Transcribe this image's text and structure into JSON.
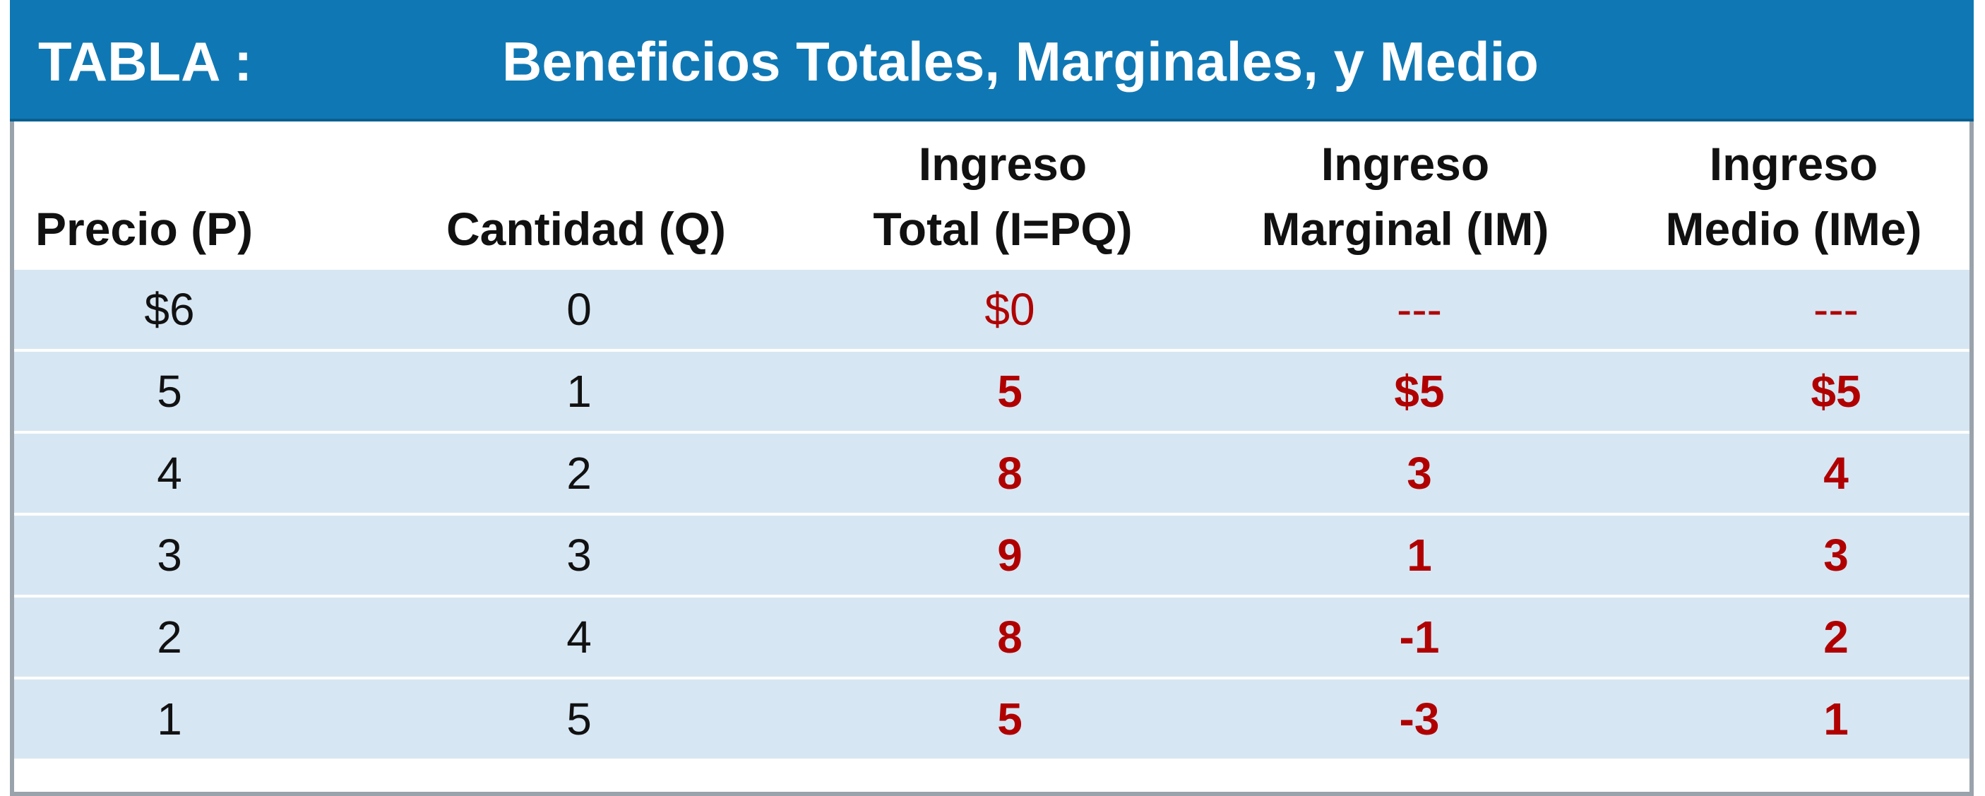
{
  "banner": {
    "label": "TABLA :",
    "title": "Beneficios Totales, Marginales, y Medio"
  },
  "table": {
    "headers": [
      {
        "line1": "",
        "line2": "Precio (P)"
      },
      {
        "line1": "",
        "line2": "Cantidad (Q)"
      },
      {
        "line1": "Ingreso",
        "line2": "Total (I=PQ)"
      },
      {
        "line1": "Ingreso",
        "line2": "Marginal (IM)"
      },
      {
        "line1": "Ingreso",
        "line2": "Medio (IMe)"
      }
    ],
    "rows": [
      {
        "precio": "$6",
        "cantidad": "0",
        "total": "$0",
        "marginal": "---",
        "medio": "---"
      },
      {
        "precio": "5",
        "cantidad": "1",
        "total": "5",
        "marginal": "$5",
        "medio": "$5"
      },
      {
        "precio": "4",
        "cantidad": "2",
        "total": "8",
        "marginal": "3",
        "medio": "4"
      },
      {
        "precio": "3",
        "cantidad": "3",
        "total": "9",
        "marginal": "1",
        "medio": "3"
      },
      {
        "precio": "2",
        "cantidad": "4",
        "total": "8",
        "marginal": "-1",
        "medio": "2"
      },
      {
        "precio": "1",
        "cantidad": "5",
        "total": "5",
        "marginal": "-3",
        "medio": "1"
      }
    ]
  },
  "colors": {
    "banner": "#0f78b4",
    "row_fill": "#d7e6f3",
    "accent_red": "#b00000"
  }
}
